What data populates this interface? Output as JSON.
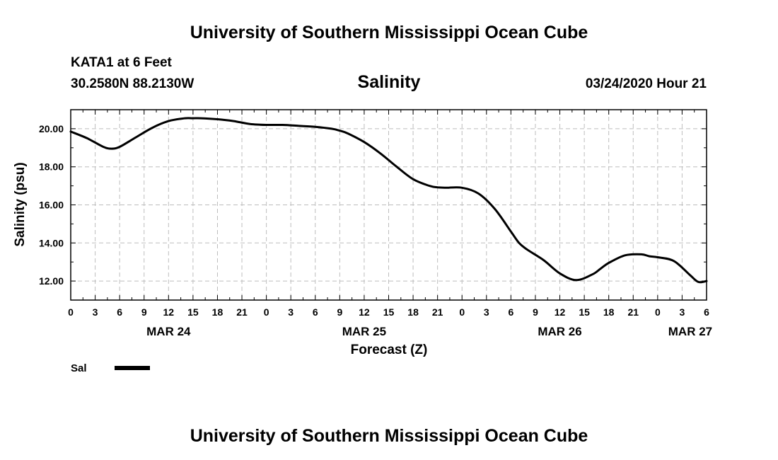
{
  "header": {
    "title": "University of Southern Mississippi Ocean Cube",
    "station": "KATA1 at 6 Feet",
    "coords": "30.2580N 88.2130W",
    "timestamp": "03/24/2020 Hour 21"
  },
  "footer": {
    "title": "University of Southern Mississippi Ocean Cube"
  },
  "chart_data": {
    "type": "line",
    "title": "Salinity",
    "ylabel": "Salinity (psu)",
    "xlabel": "Forecast (Z)",
    "ylim": [
      11.0,
      21.0
    ],
    "xlim": [
      0,
      78
    ],
    "y_ticks": [
      12.0,
      14.0,
      16.0,
      18.0,
      20.0
    ],
    "y_tick_labels": [
      "12.00",
      "14.00",
      "16.00",
      "18.00",
      "20.00"
    ],
    "x_ticks": [
      0,
      3,
      6,
      9,
      12,
      15,
      18,
      21,
      24,
      27,
      30,
      33,
      36,
      39,
      42,
      45,
      48,
      51,
      54,
      57,
      60,
      63,
      66,
      69,
      72,
      75,
      78
    ],
    "x_tick_labels": [
      "0",
      "3",
      "6",
      "9",
      "12",
      "15",
      "18",
      "21",
      "0",
      "3",
      "6",
      "9",
      "12",
      "15",
      "18",
      "21",
      "0",
      "3",
      "6",
      "9",
      "12",
      "15",
      "18",
      "21",
      "0",
      "3",
      "6"
    ],
    "day_labels": [
      {
        "label": "MAR 24",
        "hour": 12
      },
      {
        "label": "MAR 25",
        "hour": 36
      },
      {
        "label": "MAR 26",
        "hour": 60
      },
      {
        "label": "MAR 27",
        "hour": 76
      }
    ],
    "grid": true,
    "legend": [
      {
        "name": "Sal",
        "color": "#000000"
      }
    ],
    "series": [
      {
        "name": "Sal",
        "color": "#000000",
        "x": [
          0,
          2,
          4,
          5,
          6,
          8,
          10,
          12,
          14,
          15,
          16,
          18,
          20,
          22,
          24,
          26,
          28,
          30,
          32,
          33,
          34,
          36,
          38,
          40,
          42,
          44,
          45,
          46,
          48,
          50,
          52,
          54,
          55,
          56,
          58,
          60,
          62,
          64,
          65,
          66,
          68,
          70,
          71,
          72,
          74,
          76,
          77,
          78
        ],
        "values": [
          19.85,
          19.5,
          19.05,
          18.95,
          19.05,
          19.55,
          20.05,
          20.4,
          20.55,
          20.55,
          20.55,
          20.5,
          20.4,
          20.25,
          20.2,
          20.2,
          20.15,
          20.1,
          20.0,
          19.9,
          19.75,
          19.3,
          18.7,
          18.0,
          17.35,
          17.0,
          16.92,
          16.9,
          16.9,
          16.6,
          15.8,
          14.6,
          14.0,
          13.65,
          13.1,
          12.4,
          12.05,
          12.35,
          12.65,
          12.95,
          13.35,
          13.4,
          13.3,
          13.25,
          13.05,
          12.3,
          11.95,
          12.0
        ]
      }
    ]
  }
}
